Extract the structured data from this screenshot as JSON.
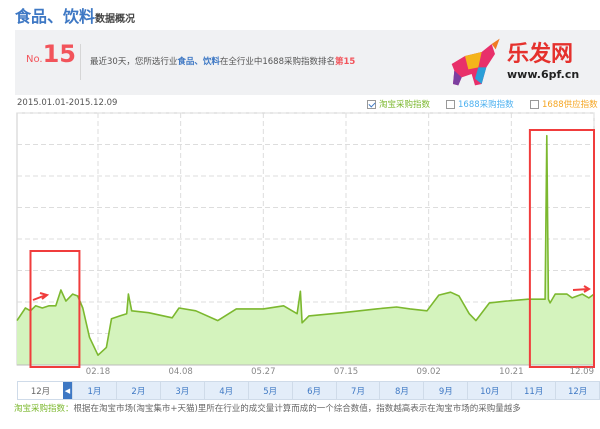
{
  "header": {
    "title": "食品、饮料",
    "subtitle": "数据概况"
  },
  "rank_panel": {
    "prefix": "No.",
    "rank": "15",
    "text_before": "最近30天，您所选行业",
    "industry": "食品、饮料",
    "text_middle": "在全行业中1688采购指数排名",
    "rank_text": "第15"
  },
  "date_range": "2015.01.01-2015.12.09",
  "legend": [
    {
      "label": "淘宝采购指数",
      "checked": true,
      "color": "#7cb82f"
    },
    {
      "label": "1688采购指数",
      "checked": false,
      "color": "#4db1f0"
    },
    {
      "label": "1688供应指数",
      "checked": false,
      "color": "#f5a623"
    }
  ],
  "chart_data": {
    "type": "area",
    "x_range": [
      "2015-01-01",
      "2015-12-09"
    ],
    "x_ticks": [
      "02.18",
      "04.08",
      "05.27",
      "07.15",
      "09.02",
      "10.21",
      "12.09"
    ],
    "ylim": [
      0,
      8
    ],
    "y_ticks_labeled": false,
    "grid": true,
    "line_color": "#7cb82f",
    "fill_color": "#d4f3bd",
    "series": [
      {
        "name": "淘宝采购指数",
        "points": [
          [
            "2015-01-01",
            1.41
          ],
          [
            "2015-01-06",
            1.81
          ],
          [
            "2015-01-09",
            1.72
          ],
          [
            "2015-01-12",
            1.88
          ],
          [
            "2015-01-16",
            1.81
          ],
          [
            "2015-01-20",
            1.88
          ],
          [
            "2015-01-24",
            1.88
          ],
          [
            "2015-01-27",
            2.38
          ],
          [
            "2015-01-30",
            2.03
          ],
          [
            "2015-02-03",
            2.25
          ],
          [
            "2015-02-06",
            2.19
          ],
          [
            "2015-02-09",
            1.81
          ],
          [
            "2015-02-13",
            0.88
          ],
          [
            "2015-02-18",
            0.31
          ],
          [
            "2015-02-23",
            0.56
          ],
          [
            "2015-02-26",
            1.47
          ],
          [
            "2015-03-03",
            1.56
          ],
          [
            "2015-03-07",
            1.63
          ],
          [
            "2015-03-08",
            2.25
          ],
          [
            "2015-03-10",
            1.72
          ],
          [
            "2015-03-20",
            1.66
          ],
          [
            "2015-04-03",
            1.5
          ],
          [
            "2015-04-07",
            1.81
          ],
          [
            "2015-04-17",
            1.72
          ],
          [
            "2015-04-30",
            1.41
          ],
          [
            "2015-05-11",
            1.78
          ],
          [
            "2015-05-27",
            1.78
          ],
          [
            "2015-06-08",
            1.88
          ],
          [
            "2015-06-16",
            1.63
          ],
          [
            "2015-06-18",
            2.34
          ],
          [
            "2015-06-19",
            1.34
          ],
          [
            "2015-06-23",
            1.56
          ],
          [
            "2015-07-13",
            1.66
          ],
          [
            "2015-08-02",
            1.78
          ],
          [
            "2015-08-14",
            1.84
          ],
          [
            "2015-08-22",
            1.78
          ],
          [
            "2015-09-01",
            1.72
          ],
          [
            "2015-09-08",
            2.22
          ],
          [
            "2015-09-15",
            2.31
          ],
          [
            "2015-09-20",
            2.19
          ],
          [
            "2015-09-26",
            1.63
          ],
          [
            "2015-09-30",
            1.41
          ],
          [
            "2015-10-08",
            1.97
          ],
          [
            "2015-10-18",
            2.03
          ],
          [
            "2015-10-31",
            2.09
          ],
          [
            "2015-11-10",
            2.09
          ],
          [
            "2015-11-11",
            7.28
          ],
          [
            "2015-11-12",
            2.09
          ],
          [
            "2015-11-13",
            1.97
          ],
          [
            "2015-11-16",
            2.25
          ],
          [
            "2015-11-23",
            2.25
          ],
          [
            "2015-11-26",
            2.13
          ],
          [
            "2015-12-02",
            2.25
          ],
          [
            "2015-12-06",
            2.13
          ],
          [
            "2015-12-09",
            2.25
          ]
        ]
      }
    ],
    "annotations": [
      {
        "type": "highlight-box",
        "color": "#f03c3c",
        "from": "2015-01-09",
        "to": "2015-02-07"
      },
      {
        "type": "highlight-box",
        "color": "#f03c3c",
        "from": "2015-11-01",
        "to": "2015-12-09"
      }
    ]
  },
  "months": {
    "current": "12月",
    "tabs": [
      "1月",
      "2月",
      "3月",
      "4月",
      "5月",
      "6月",
      "7月",
      "8月",
      "9月",
      "10月",
      "11月",
      "12月"
    ]
  },
  "description": {
    "key": "淘宝采购指数：",
    "text": "根据在淘宝市场(淘宝集市+天猫)里所在行业的成交量计算而成的一个综合数值，指数越高表示在淘宝市场的采购量越多"
  },
  "watermark": {
    "logo": "乐发网",
    "url": "www.6pf.cn"
  }
}
